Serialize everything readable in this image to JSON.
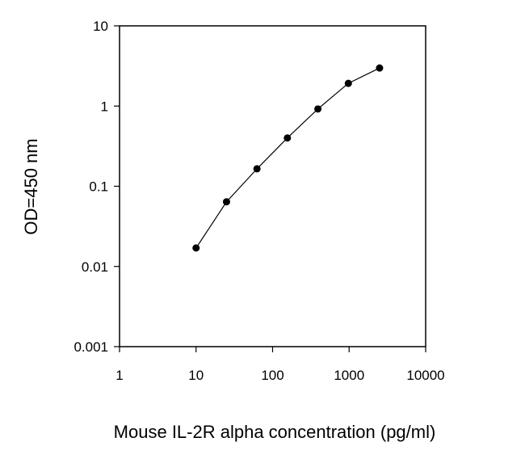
{
  "chart_data": {
    "type": "line",
    "title": "",
    "xlabel": "Mouse IL-2R alpha concentration (pg/ml)",
    "ylabel": "OD=450 nm",
    "xscale": "log",
    "yscale": "log",
    "xlim": [
      1,
      10000
    ],
    "ylim": [
      0.001,
      10
    ],
    "x_ticks": [
      1,
      10,
      100,
      1000,
      10000
    ],
    "x_tick_labels": [
      "1",
      "10",
      "100",
      "1000",
      "10000"
    ],
    "y_ticks": [
      0.001,
      0.01,
      0.1,
      1,
      10
    ],
    "y_tick_labels": [
      "0.001",
      "0.01",
      "0.1",
      "1",
      "10"
    ],
    "grid": false,
    "legend": "none",
    "series": [
      {
        "x": [
          10,
          25,
          62.5,
          156,
          391,
          977,
          2500
        ],
        "y": [
          0.017,
          0.064,
          0.165,
          0.4,
          0.92,
          1.92,
          2.98
        ],
        "color": "#000000",
        "marker": "circle"
      }
    ]
  }
}
